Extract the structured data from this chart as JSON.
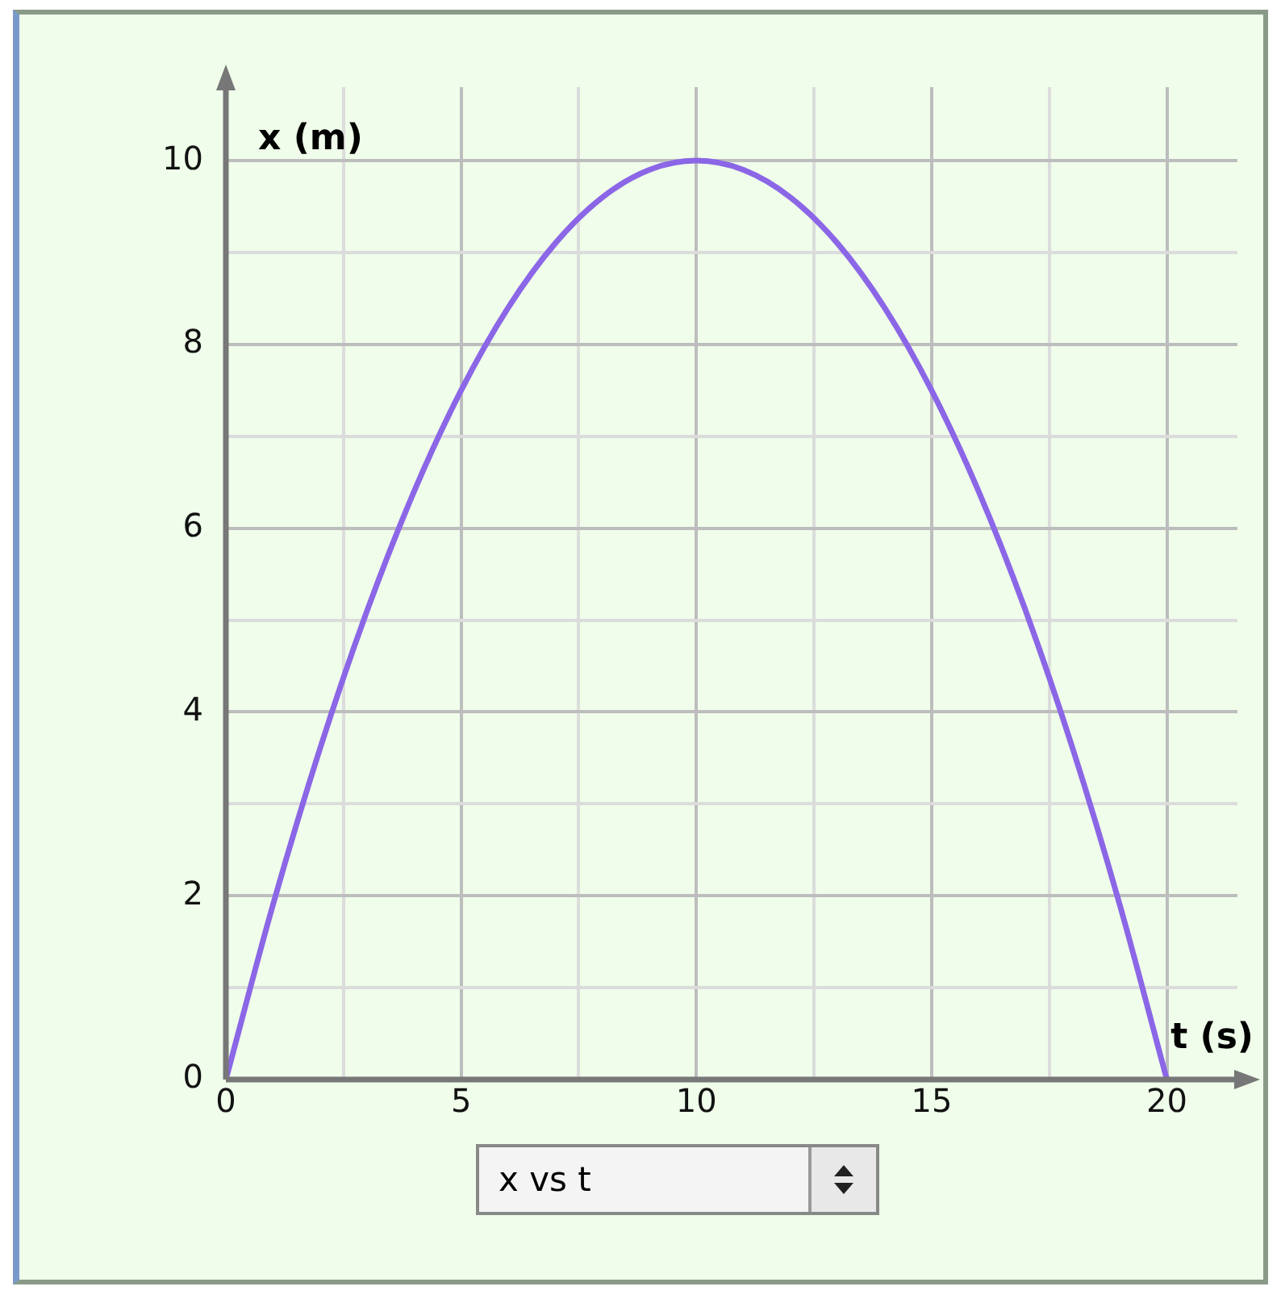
{
  "chart_data": {
    "type": "line",
    "xlabel": "t (s)",
    "ylabel": "x (m)",
    "x": [
      0,
      1,
      2,
      3,
      4,
      5,
      6,
      7,
      8,
      9,
      10,
      11,
      12,
      13,
      14,
      15,
      16,
      17,
      18,
      19,
      20
    ],
    "series": [
      {
        "color": "#8b66e6",
        "values": [
          0,
          1.9,
          3.6,
          5.1,
          6.4,
          7.5,
          8.4,
          9.1,
          9.6,
          9.9,
          10,
          9.9,
          9.6,
          9.1,
          8.4,
          7.5,
          6.4,
          5.1,
          3.6,
          1.9,
          0
        ]
      }
    ],
    "xlim": [
      0,
      21.5
    ],
    "ylim": [
      0,
      10.8
    ],
    "xticks": [
      0,
      {
        "value": 2.5,
        "label": null
      },
      5,
      {
        "value": 7.5,
        "label": null
      },
      10,
      {
        "value": 12.5,
        "label": null
      },
      15,
      {
        "value": 17.5,
        "label": null
      },
      20
    ],
    "yticks": [
      0,
      {
        "value": 1,
        "label": null
      },
      2,
      {
        "value": 3,
        "label": null
      },
      4,
      {
        "value": 5,
        "label": null
      },
      6,
      {
        "value": 7,
        "label": null
      },
      8,
      {
        "value": 9,
        "label": null
      },
      10
    ],
    "grid": true,
    "legend": false,
    "marker": "none",
    "line_style": "solid",
    "annotations": [
      "x vs t"
    ]
  }
}
